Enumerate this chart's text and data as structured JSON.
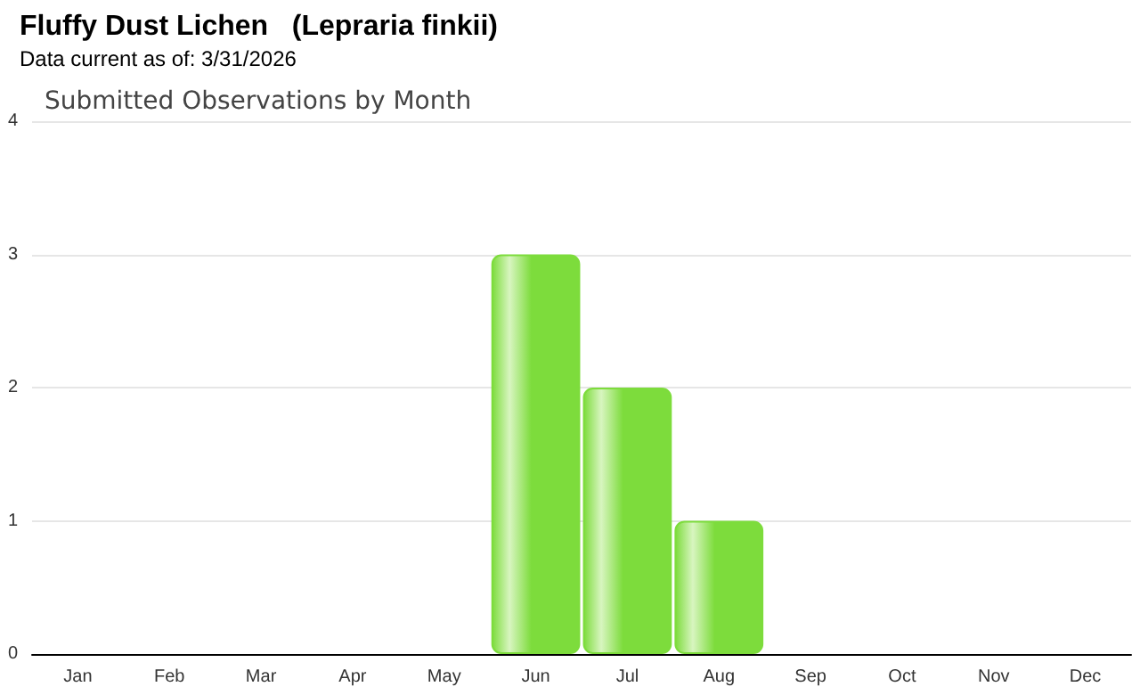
{
  "chart_data": {
    "type": "bar",
    "title": "Fluffy Dust Lichen   (Lepraria finkii)",
    "subtitle": "Data current as of: 3/31/2026",
    "annotations": [
      "Submitted Observations by Month"
    ],
    "categories": [
      "Jan",
      "Feb",
      "Mar",
      "Apr",
      "May",
      "Jun",
      "Jul",
      "Aug",
      "Sep",
      "Oct",
      "Nov",
      "Dec"
    ],
    "values": [
      0,
      0,
      0,
      0,
      0,
      3,
      2,
      1,
      0,
      0,
      0,
      0
    ],
    "color": "#7ddc3c",
    "ylim": [
      0,
      4
    ],
    "yticks": [
      0,
      1,
      2,
      3,
      4
    ],
    "grid": "y"
  }
}
